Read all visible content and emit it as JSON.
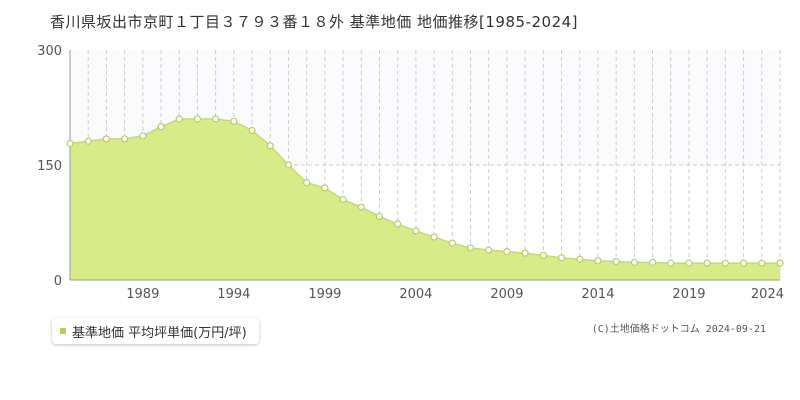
{
  "chart_data": {
    "type": "area",
    "title": "香川県坂出市京町１丁目３７９３番１８外 基準地価 地価推移[1985-2024]",
    "x": [
      1985,
      1986,
      1987,
      1988,
      1989,
      1990,
      1991,
      1992,
      1993,
      1994,
      1995,
      1996,
      1997,
      1998,
      1999,
      2000,
      2001,
      2002,
      2003,
      2004,
      2005,
      2006,
      2007,
      2008,
      2009,
      2010,
      2011,
      2012,
      2013,
      2014,
      2015,
      2016,
      2017,
      2018,
      2019,
      2020,
      2021,
      2022,
      2023,
      2024
    ],
    "series": [
      {
        "name": "基準地価 平均坪単価(万円/坪)",
        "values": [
          178,
          181,
          184,
          184,
          188,
          200,
          210,
          210,
          210,
          207,
          195,
          175,
          150,
          127,
          120,
          105,
          95,
          83,
          73,
          64,
          56,
          48,
          42,
          39,
          37,
          35,
          32,
          29,
          27,
          25,
          24,
          23,
          23,
          22,
          22,
          22,
          22,
          22,
          22,
          22
        ]
      }
    ],
    "xticks": [
      "1989",
      "1994",
      "1999",
      "2004",
      "2009",
      "2014",
      "2019",
      "2024"
    ],
    "yticks": [
      "0",
      "150",
      "300"
    ],
    "ylim": [
      0,
      300
    ],
    "grid": true,
    "legend": "bottom-left",
    "colors": {
      "area_fill": "#d8eb89",
      "line": "#c3dc6a",
      "marker_stroke": "#b5d05a",
      "marker_fill": "#ffffff",
      "upper_band": "#fbfafd",
      "grid": "#cccccc",
      "legend_marker": "#b5d05a"
    }
  },
  "credit": "(C)土地価格ドットコム 2024-09-21"
}
